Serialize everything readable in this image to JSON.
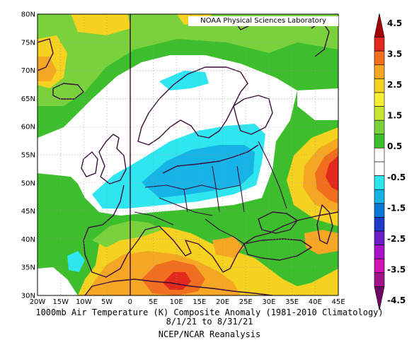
{
  "credit": "NOAA Physical Sciences Laboratory",
  "caption": {
    "line1": "1000mb Air Temperature (K) Composite Anomaly (1981-2010 Climatology)",
    "line2": "8/1/21 to 8/31/21",
    "line3": "NCEP/NCAR Reanalysis"
  },
  "axes": {
    "lon_labels": [
      "20W",
      "15W",
      "10W",
      "5W",
      "0",
      "5E",
      "10E",
      "15E",
      "20E",
      "25E",
      "30E",
      "35E",
      "40E",
      "45E"
    ],
    "lat_labels": [
      "80N",
      "75N",
      "70N",
      "65N",
      "60N",
      "55N",
      "50N",
      "45N",
      "40N",
      "35N",
      "30N"
    ]
  },
  "colorbar": {
    "labels": [
      "4.5",
      "3.5",
      "2.5",
      "1.5",
      "0.5",
      "-0.5",
      "-1.5",
      "-2.5",
      "-3.5",
      "-4.5"
    ],
    "colors": [
      "#a50000",
      "#e3281e",
      "#f06e1e",
      "#f5a623",
      "#f5d220",
      "#f5f034",
      "#c8e632",
      "#79d23c",
      "#3cbe2d",
      "#ffffff",
      "#ffffff",
      "#2ee6f0",
      "#16b4e6",
      "#0a78d2",
      "#1e3cc8",
      "#6e1ec8",
      "#aa14c8",
      "#d214b4",
      "#a0148c",
      "#6e0a64"
    ]
  },
  "colors": {
    "white": "#ffffff",
    "green": "#3cbe2d",
    "ltgreen": "#79d23c",
    "yellow": "#f5d220",
    "orange": "#f5a623",
    "dkorange": "#f06e1e",
    "red": "#e3281e",
    "cyan": "#2ee6f0",
    "blue": "#16b4e6",
    "border": "#3a0d3a"
  }
}
